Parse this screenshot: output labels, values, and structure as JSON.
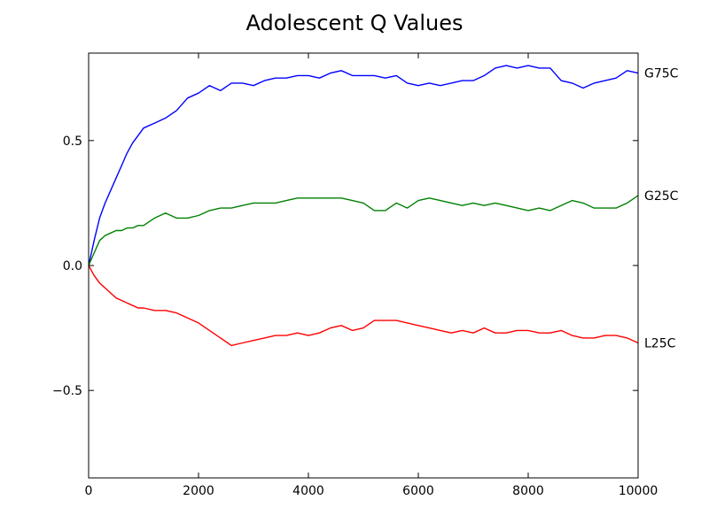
{
  "chart_data": {
    "type": "line",
    "title": "Adolescent Q Values",
    "xlabel": "",
    "ylabel": "",
    "xlim": [
      0,
      10000
    ],
    "ylim": [
      -0.85,
      0.85
    ],
    "grid": false,
    "legend": "none",
    "x_ticks": [
      0,
      2000,
      4000,
      6000,
      8000,
      10000
    ],
    "x_tick_labels": [
      "0",
      "2000",
      "4000",
      "6000",
      "8000",
      "10000"
    ],
    "y_ticks": [
      -0.5,
      0.0,
      0.5
    ],
    "y_tick_labels": [
      "−0.5",
      "0.0",
      "0.5"
    ],
    "x": [
      0,
      100,
      200,
      300,
      400,
      500,
      600,
      700,
      800,
      900,
      1000,
      1200,
      1400,
      1600,
      1800,
      2000,
      2200,
      2400,
      2600,
      2800,
      3000,
      3200,
      3400,
      3600,
      3800,
      4000,
      4200,
      4400,
      4600,
      4800,
      5000,
      5200,
      5400,
      5600,
      5800,
      6000,
      6200,
      6400,
      6600,
      6800,
      7000,
      7200,
      7400,
      7600,
      7800,
      8000,
      8200,
      8400,
      8600,
      8800,
      9000,
      9200,
      9400,
      9600,
      9800,
      10000
    ],
    "series": [
      {
        "name": "G75C",
        "color": "#0000ff",
        "values": [
          0.0,
          0.1,
          0.19,
          0.25,
          0.3,
          0.35,
          0.4,
          0.45,
          0.49,
          0.52,
          0.55,
          0.57,
          0.59,
          0.62,
          0.67,
          0.69,
          0.72,
          0.7,
          0.73,
          0.73,
          0.72,
          0.74,
          0.75,
          0.75,
          0.76,
          0.76,
          0.75,
          0.77,
          0.78,
          0.76,
          0.76,
          0.76,
          0.75,
          0.76,
          0.73,
          0.72,
          0.73,
          0.72,
          0.73,
          0.74,
          0.74,
          0.76,
          0.79,
          0.8,
          0.79,
          0.8,
          0.79,
          0.79,
          0.74,
          0.73,
          0.71,
          0.73,
          0.74,
          0.75,
          0.78,
          0.77
        ]
      },
      {
        "name": "G25C",
        "color": "#008000",
        "values": [
          0.0,
          0.05,
          0.1,
          0.12,
          0.13,
          0.14,
          0.14,
          0.15,
          0.15,
          0.16,
          0.16,
          0.19,
          0.21,
          0.19,
          0.19,
          0.2,
          0.22,
          0.23,
          0.23,
          0.24,
          0.25,
          0.25,
          0.25,
          0.26,
          0.27,
          0.27,
          0.27,
          0.27,
          0.27,
          0.26,
          0.25,
          0.22,
          0.22,
          0.25,
          0.23,
          0.26,
          0.27,
          0.26,
          0.25,
          0.24,
          0.25,
          0.24,
          0.25,
          0.24,
          0.23,
          0.22,
          0.23,
          0.22,
          0.24,
          0.26,
          0.25,
          0.23,
          0.23,
          0.23,
          0.25,
          0.28
        ]
      },
      {
        "name": "L25C",
        "color": "#ff0000",
        "values": [
          0.0,
          -0.04,
          -0.07,
          -0.09,
          -0.11,
          -0.13,
          -0.14,
          -0.15,
          -0.16,
          -0.17,
          -0.17,
          -0.18,
          -0.18,
          -0.19,
          -0.21,
          -0.23,
          -0.26,
          -0.29,
          -0.32,
          -0.31,
          -0.3,
          -0.29,
          -0.28,
          -0.28,
          -0.27,
          -0.28,
          -0.27,
          -0.25,
          -0.24,
          -0.26,
          -0.25,
          -0.22,
          -0.22,
          -0.22,
          -0.23,
          -0.24,
          -0.25,
          -0.26,
          -0.27,
          -0.26,
          -0.27,
          -0.25,
          -0.27,
          -0.27,
          -0.26,
          -0.26,
          -0.27,
          -0.27,
          -0.26,
          -0.28,
          -0.29,
          -0.29,
          -0.28,
          -0.28,
          -0.29,
          -0.31
        ]
      }
    ]
  }
}
